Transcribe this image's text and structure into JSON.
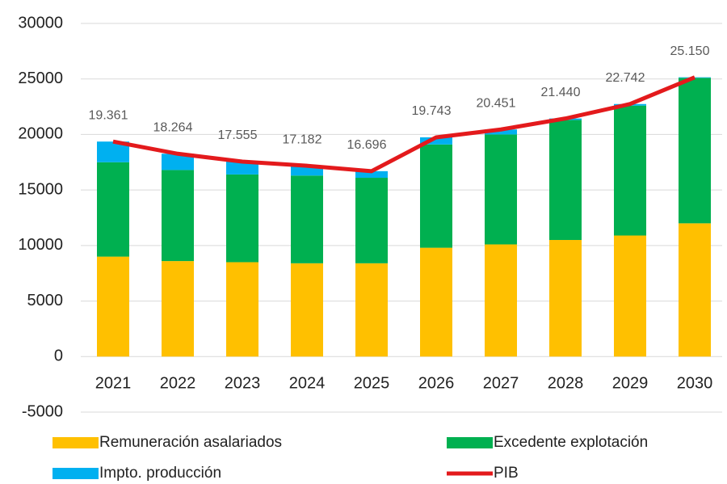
{
  "chart_data": {
    "type": "bar",
    "categories": [
      "2021",
      "2022",
      "2023",
      "2024",
      "2025",
      "2026",
      "2027",
      "2028",
      "2029",
      "2030"
    ],
    "series": [
      {
        "name": "Remuneración asalariados",
        "color": "#ffc000",
        "type": "bar",
        "values": [
          9000,
          8600,
          8500,
          8400,
          8400,
          9800,
          10100,
          10500,
          10900,
          12000
        ]
      },
      {
        "name": "Excedente explotación",
        "color": "#00b050",
        "type": "bar",
        "values": [
          8500,
          8200,
          7900,
          7900,
          7700,
          9300,
          9900,
          10800,
          11700,
          13100
        ]
      },
      {
        "name": "Impto. producción",
        "color": "#00b0f0",
        "type": "bar",
        "values": [
          1861,
          1464,
          1155,
          882,
          596,
          643,
          451,
          140,
          142,
          50
        ]
      },
      {
        "name": "PIB",
        "color": "#e31a1c",
        "type": "line",
        "values": [
          19361,
          18264,
          17555,
          17182,
          16696,
          19743,
          20451,
          21440,
          22742,
          25150
        ],
        "value_labels": [
          "19.361",
          "18.264",
          "17.555",
          "17.182",
          "16.696",
          "19.743",
          "20.451",
          "21.440",
          "22.742",
          "25.150"
        ]
      }
    ],
    "ylim": [
      -5000,
      30000
    ],
    "yticks": [
      -5000,
      0,
      5000,
      10000,
      15000,
      20000,
      25000,
      30000
    ],
    "grid": true,
    "legend": "bottom"
  }
}
